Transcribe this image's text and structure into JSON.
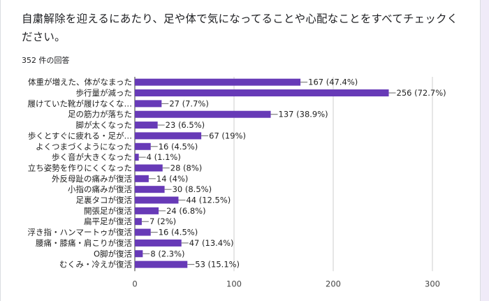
{
  "question": "自粛解除を迎えるにあたり、足や体で気になってることや心配なことをすべてチェックください。",
  "response_count": "352 件の回答",
  "colors": {
    "bar": "#673ab7",
    "grid": "#cccccc",
    "leader": "#666666"
  },
  "chart_data": {
    "type": "bar",
    "orientation": "horizontal",
    "title": "",
    "xlabel": "",
    "ylabel": "",
    "xlim": [
      0,
      300
    ],
    "xticks": [
      0,
      100,
      200,
      300
    ],
    "grid": true,
    "categories": [
      "体重が増えた、体がなまった",
      "歩行量が減った",
      "履けていた靴が履けなくな…",
      "足の筋力が落ちた",
      "脚が太くなった",
      "歩くとすぐに疲れる・足が…",
      "よくつまづくようになった",
      "歩く音が大きくなった",
      "立ち姿勢を作りにくくなった",
      "外反母趾の痛みが復活",
      "小指の痛みが復活",
      "足裏タコが復活",
      "開張足が復活",
      "扁平足が復活",
      "浮き指・ハンマートゥが復活",
      "腰痛・膝痛・肩こりが復活",
      "O脚が復活",
      "むくみ・冷えが復活"
    ],
    "values": [
      167,
      256,
      27,
      137,
      23,
      67,
      16,
      4,
      28,
      14,
      30,
      44,
      24,
      7,
      16,
      47,
      8,
      53
    ],
    "value_labels": [
      "167 (47.4%)",
      "256 (72.7%)",
      "27 (7.7%)",
      "137 (38.9%)",
      "23 (6.5%)",
      "67 (19%)",
      "16 (4.5%)",
      "4 (1.1%)",
      "28 (8%)",
      "14 (4%)",
      "30 (8.5%)",
      "44 (12.5%)",
      "24 (6.8%)",
      "7 (2%)",
      "16 (4.5%)",
      "47 (13.4%)",
      "8 (2.3%)",
      "53 (15.1%)"
    ]
  }
}
